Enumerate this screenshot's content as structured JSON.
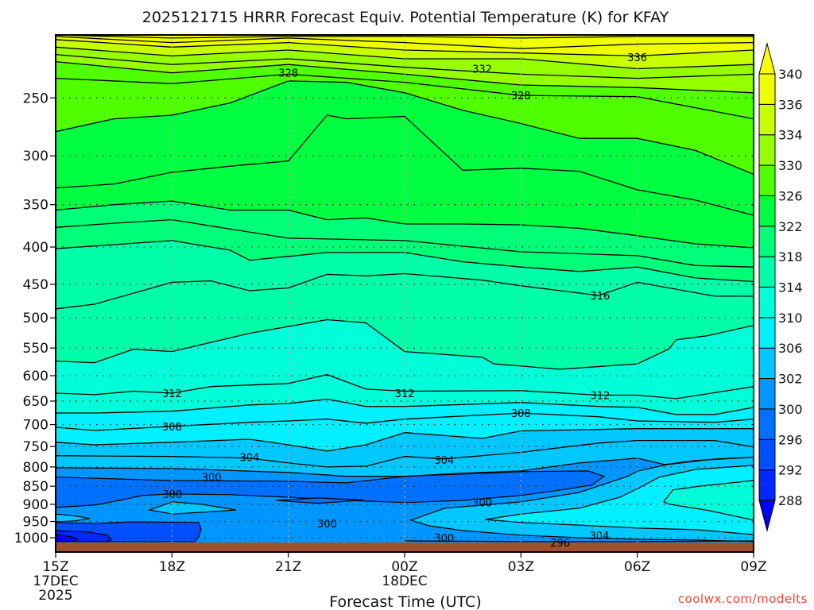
{
  "chart_data": {
    "type": "contour",
    "title": "2025121715 HRRR Forecast Equiv. Potential Temperature (K) for KFAY",
    "xlabel": "Forecast Time (UTC)",
    "ylabel": "",
    "credit": "coolwx.com/modelts",
    "x_axis": {
      "range_hours": [
        0,
        18
      ],
      "ticks": [
        {
          "h": 0,
          "label": "15Z",
          "sub": [
            "17DEC",
            "2025"
          ]
        },
        {
          "h": 3,
          "label": "18Z",
          "sub": []
        },
        {
          "h": 6,
          "label": "21Z",
          "sub": []
        },
        {
          "h": 9,
          "label": "00Z",
          "sub": [
            "18DEC"
          ]
        },
        {
          "h": 12,
          "label": "03Z",
          "sub": []
        },
        {
          "h": 15,
          "label": "06Z",
          "sub": []
        },
        {
          "h": 18,
          "label": "09Z",
          "sub": []
        }
      ]
    },
    "y_axis": {
      "scale": "log",
      "inverted": true,
      "range_mb": [
        205,
        1046
      ],
      "ticks": [
        250,
        300,
        350,
        400,
        450,
        500,
        550,
        600,
        650,
        700,
        750,
        800,
        850,
        900,
        950,
        1000
      ]
    },
    "surface_pressure_mb": 1015,
    "colorbar": {
      "levels": [
        288,
        292,
        296,
        300,
        302,
        306,
        310,
        314,
        318,
        322,
        326,
        330,
        334,
        336,
        340
      ],
      "colors": [
        "#0000ff",
        "#0028ff",
        "#0050ff",
        "#0070ff",
        "#0096ff",
        "#00c8ff",
        "#00f0ff",
        "#00ffd8",
        "#00ffa8",
        "#00ff78",
        "#00ff40",
        "#50ff00",
        "#96ff00",
        "#c8ff00",
        "#f0ff00",
        "#ffff00"
      ]
    },
    "ground_color": "#a0522d",
    "contours": [
      {
        "level": 302,
        "t": [
          0,
          3,
          6,
          7.5,
          9,
          10.5,
          12,
          13.5,
          15,
          15.7,
          16.5,
          18
        ],
        "p": [
          802,
          804,
          814,
          824,
          824,
          816,
          810,
          790,
          778,
          794,
          784,
          776
        ]
      },
      {
        "level": 304,
        "t": [
          0,
          3,
          5,
          6,
          7,
          8,
          9,
          10,
          12,
          14,
          15,
          17,
          18
        ],
        "p": [
          772,
          774,
          778,
          790,
          800,
          798,
          774,
          780,
          764,
          742,
          736,
          736,
          751
        ]
      },
      {
        "level": 306,
        "t": [
          0,
          1,
          3,
          5,
          6,
          7,
          8,
          9,
          11,
          12,
          15,
          18
        ],
        "p": [
          740,
          746,
          740,
          733,
          746,
          761,
          746,
          718,
          731,
          714,
          709,
          709
        ]
      },
      {
        "level": 308,
        "t": [
          0,
          1,
          3,
          5,
          6,
          7,
          8,
          9,
          12,
          14,
          15,
          17,
          18
        ],
        "p": [
          706,
          713,
          704,
          695,
          692,
          688,
          697,
          688,
          675,
          683,
          692,
          695,
          688
        ]
      },
      {
        "level": 310,
        "t": [
          0,
          1,
          3,
          5,
          6,
          7,
          8,
          9,
          12,
          14,
          15,
          16,
          17,
          18
        ],
        "p": [
          675,
          675,
          671,
          658,
          655,
          646,
          661,
          661,
          653,
          661,
          663,
          678,
          678,
          663
        ]
      },
      {
        "level": 312,
        "t": [
          0,
          1,
          2,
          3,
          4,
          6,
          7,
          8,
          9,
          12,
          14,
          15,
          16,
          18
        ],
        "p": [
          634,
          637,
          630,
          634,
          621,
          615,
          598,
          626,
          630,
          629,
          638,
          638,
          645,
          621
        ]
      },
      {
        "level": 314,
        "t": [
          0,
          1,
          2,
          3,
          5,
          7,
          8,
          9,
          11,
          11.3,
          13,
          15,
          15.8,
          16,
          16.8,
          18
        ],
        "p": [
          573,
          576,
          552,
          556,
          525,
          503,
          508,
          556,
          566,
          578,
          588,
          578,
          552,
          536,
          529,
          512
        ]
      },
      {
        "level": 316,
        "t": [
          0,
          1,
          3,
          4,
          5,
          6,
          7,
          8,
          9,
          11,
          12,
          14,
          15,
          17,
          18
        ],
        "p": [
          486,
          479,
          447,
          445,
          459,
          455,
          436,
          438,
          435,
          444,
          452,
          466,
          447,
          467,
          467
        ]
      },
      {
        "level": 318,
        "t": [
          0,
          1.5,
          3,
          4.5,
          5,
          6,
          7,
          9,
          10.5,
          12,
          13.5,
          15,
          16.5,
          18
        ],
        "p": [
          402,
          397,
          392,
          404,
          417,
          412,
          407,
          407,
          419,
          426,
          432,
          426,
          441,
          446
        ]
      },
      {
        "level": 320,
        "t": [
          0,
          1.5,
          3,
          4.5,
          6,
          9,
          12,
          15,
          16.5,
          18
        ],
        "p": [
          376,
          371,
          367,
          378,
          389,
          392,
          406,
          411,
          424,
          426
        ]
      },
      {
        "level": 322,
        "t": [
          0,
          1.5,
          3,
          4.5,
          6,
          7,
          8,
          9,
          10.5,
          12,
          13.5,
          15,
          16.5,
          18
        ],
        "p": [
          356,
          350,
          346,
          356,
          356,
          367,
          365,
          372,
          372,
          373,
          377,
          386,
          396,
          401
        ]
      },
      {
        "level": 324,
        "t": [
          0,
          1.5,
          3,
          4.5,
          6,
          7,
          7.5,
          9,
          10.5,
          12,
          13.5,
          15,
          16.5,
          18
        ],
        "p": [
          332,
          328,
          316,
          310,
          305,
          264,
          267,
          265,
          314,
          312,
          315,
          334,
          345,
          362
        ]
      },
      {
        "level": 326,
        "t": [
          0,
          1.5,
          3,
          4.5,
          6,
          7.5,
          9,
          10.5,
          12,
          13.5,
          15,
          16.5,
          18
        ],
        "p": [
          278,
          267,
          264,
          254,
          237,
          238,
          246,
          260,
          271,
          284,
          284,
          295,
          318
        ]
      },
      {
        "level": 328,
        "t": [
          0,
          3,
          6,
          9,
          12,
          15,
          18
        ],
        "p": [
          235,
          239,
          232,
          238,
          248,
          249,
          267
        ]
      },
      {
        "level": 330,
        "t": [
          0,
          3,
          6,
          9,
          12,
          15,
          18
        ],
        "p": [
          223,
          231,
          225,
          232,
          240,
          242,
          246
        ]
      },
      {
        "level": 332,
        "t": [
          0,
          3,
          6,
          9,
          12,
          15,
          18
        ],
        "p": [
          218,
          225,
          221,
          227,
          232,
          235,
          232
        ]
      },
      {
        "level": 334,
        "t": [
          0,
          3,
          6,
          9,
          12,
          15,
          18
        ],
        "p": [
          213,
          219,
          215,
          221,
          221,
          228,
          225
        ]
      },
      {
        "level": 336,
        "t": [
          0,
          3,
          6,
          9,
          12,
          15,
          18
        ],
        "p": [
          208,
          213,
          210,
          215,
          217,
          219,
          215
        ]
      },
      {
        "level": 338,
        "t": [
          0,
          3,
          6,
          9,
          12,
          15,
          18
        ],
        "p": [
          206,
          210,
          207,
          210,
          214,
          211,
          210
        ]
      },
      {
        "level": 340,
        "t": [
          0,
          3,
          6,
          9,
          12,
          15,
          18
        ],
        "p": [
          205,
          207,
          206,
          206,
          207,
          206,
          206
        ]
      }
    ],
    "regions": [
      {
        "value": 298,
        "t": [
          0,
          3.01,
          6,
          7.5,
          9.02,
          10.51,
          12.01,
          13.73,
          14.14,
          13.83,
          12.91,
          12.01,
          10.51,
          9.02,
          7.5,
          6,
          4.51,
          3.01,
          2.25,
          1.64,
          1.02,
          0
        ],
        "p": [
          826,
          835,
          837,
          841,
          824,
          818,
          812,
          810,
          824,
          847,
          862,
          875,
          889,
          895,
          889,
          880,
          873,
          871,
          875,
          889,
          902,
          909
        ]
      },
      {
        "value": 298,
        "t": [
          5.68,
          6.76,
          7.93,
          6.76
        ],
        "p": [
          889,
          882,
          888,
          897
        ]
      },
      {
        "value": 304,
        "t": [
          2.42,
          3.01,
          3.75,
          4.65,
          3.75,
          3.01
        ],
        "p": [
          916,
          893,
          900,
          916,
          923,
          928
        ]
      },
      {
        "value": 304,
        "t": [
          0,
          0.51,
          0.88,
          0.51,
          0
        ],
        "p": [
          928,
          934,
          941,
          948,
          951
        ]
      },
      {
        "value": 294,
        "t": [
          0,
          1.02,
          1.95,
          3.69,
          3.75,
          3.69,
          3.59,
          0
        ],
        "p": [
          953,
          956,
          951,
          953,
          973,
          997,
          1012,
          1012
        ]
      },
      {
        "value": 290,
        "t": [
          0,
          0.82,
          1.33,
          1.43,
          1.33,
          0
        ],
        "p": [
          978,
          982,
          992,
          1005,
          1012,
          1012
        ]
      },
      {
        "value": 286,
        "t": [
          0,
          0.41,
          0.57,
          0.45,
          0
        ],
        "p": [
          990,
          997,
          1005,
          1012,
          1012
        ]
      },
      {
        "value": 304,
        "t": [
          9.16,
          10.04,
          12.01,
          13.5,
          14.75,
          15.02,
          15.78,
          17,
          18,
          18,
          16.52,
          15.02,
          13.5,
          12.01,
          10.51,
          9.63
        ],
        "p": [
          946,
          911,
          893,
          867,
          824,
          810,
          794,
          780,
          776,
          1012,
          1007,
          1005,
          1000,
          992,
          978,
          963
        ]
      },
      {
        "value": 308,
        "t": [
          11.07,
          12.01,
          13.5,
          14.55,
          15.02,
          15.57,
          16.52,
          18,
          18,
          16.52,
          15.02,
          13.5,
          12.01
        ],
        "p": [
          944,
          928,
          911,
          880,
          856,
          826,
          806,
          796,
          990,
          975,
          970,
          961,
          953
        ]
      },
      {
        "value": 312,
        "t": [
          15.68,
          15.92,
          16.6,
          18,
          18,
          16.86,
          15.84
        ],
        "p": [
          893,
          860,
          850,
          835,
          946,
          918,
          900
        ]
      }
    ],
    "lines": [
      {
        "level": 296,
        "t": [
          9,
          12,
          15,
          18
        ],
        "p": [
          1010,
          1012,
          1012,
          1010
        ]
      }
    ],
    "labels": [
      {
        "text": "336",
        "t": 15.0,
        "p": 220
      },
      {
        "text": "332",
        "t": 11.0,
        "p": 228
      },
      {
        "text": "328",
        "t": 6.0,
        "p": 231
      },
      {
        "text": "328",
        "t": 12.0,
        "p": 248
      },
      {
        "text": "316",
        "t": 14.04,
        "p": 466
      },
      {
        "text": "312",
        "t": 3.0,
        "p": 634
      },
      {
        "text": "312",
        "t": 9.0,
        "p": 634
      },
      {
        "text": "312",
        "t": 14.04,
        "p": 638
      },
      {
        "text": "308",
        "t": 3.0,
        "p": 704
      },
      {
        "text": "308",
        "t": 12.0,
        "p": 675
      },
      {
        "text": "304",
        "t": 5.0,
        "p": 776
      },
      {
        "text": "304",
        "t": 10.02,
        "p": 782
      },
      {
        "text": "300",
        "t": 4.02,
        "p": 826
      },
      {
        "text": "300",
        "t": 3.01,
        "p": 871
      },
      {
        "text": "300",
        "t": 11.0,
        "p": 895
      },
      {
        "text": "300",
        "t": 7.0,
        "p": 956
      },
      {
        "text": "300",
        "t": 10.02,
        "p": 1000
      },
      {
        "text": "304",
        "t": 14.02,
        "p": 992
      },
      {
        "text": "296",
        "t": 13.01,
        "p": 1015
      }
    ]
  }
}
